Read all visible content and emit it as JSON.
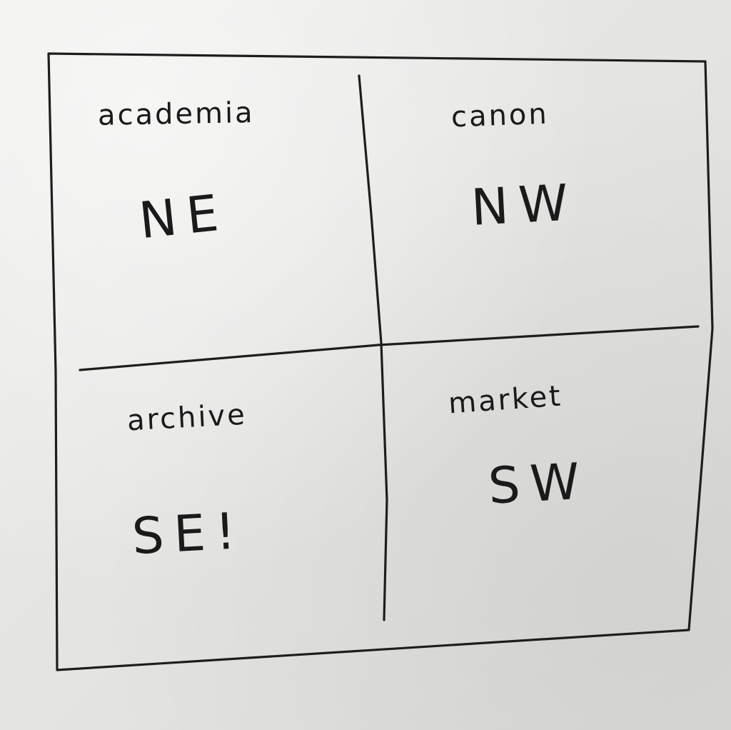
{
  "quadrants": [
    {
      "id": "top-left",
      "word": "academia",
      "direction": "NE"
    },
    {
      "id": "top-right",
      "word": "canon",
      "direction": "NW"
    },
    {
      "id": "bottom-left",
      "word": "archive",
      "direction": "SE!"
    },
    {
      "id": "bottom-right",
      "word": "market",
      "direction": "SW"
    }
  ]
}
